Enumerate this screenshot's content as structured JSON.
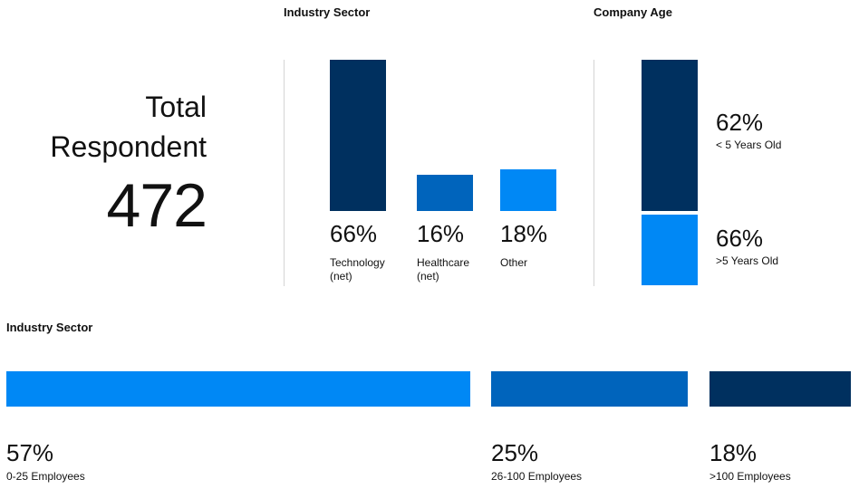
{
  "total": {
    "label_line1": "Total",
    "label_line2": "Respondent",
    "value": "472"
  },
  "colors": {
    "dark": "#00305f",
    "mid": "#0064bc",
    "light": "#0088f5"
  },
  "chart_data": [
    {
      "type": "bar",
      "title": "Industry Sector",
      "categories": [
        "Technology (net)",
        "Healthcare (net)",
        "Other"
      ],
      "values": [
        66,
        16,
        18
      ],
      "value_labels": [
        "66%",
        "16%",
        "18%"
      ],
      "category_lines": [
        [
          "Technology",
          "(net)"
        ],
        [
          "Healthcare",
          "(net)"
        ],
        [
          "Other",
          ""
        ]
      ],
      "colors": [
        "#00305f",
        "#0064bc",
        "#0088f5"
      ],
      "ylim": [
        0,
        66
      ]
    },
    {
      "type": "bar",
      "title": "Company Age",
      "stacked": true,
      "categories": [
        "< 5 Years Old",
        ">5 Years Old"
      ],
      "values": [
        62,
        66
      ],
      "value_labels": [
        "62%",
        "66%"
      ],
      "colors": [
        "#00305f",
        "#0088f5"
      ]
    },
    {
      "type": "bar",
      "orientation": "horizontal",
      "title": "Industry Sector",
      "categories": [
        "0-25 Employees",
        "26-100 Employees",
        ">100 Employees"
      ],
      "values": [
        57,
        25,
        18
      ],
      "value_labels": [
        "57%",
        "25%",
        "18%"
      ],
      "colors": [
        "#0088f5",
        "#0064bc",
        "#00305f"
      ]
    }
  ]
}
